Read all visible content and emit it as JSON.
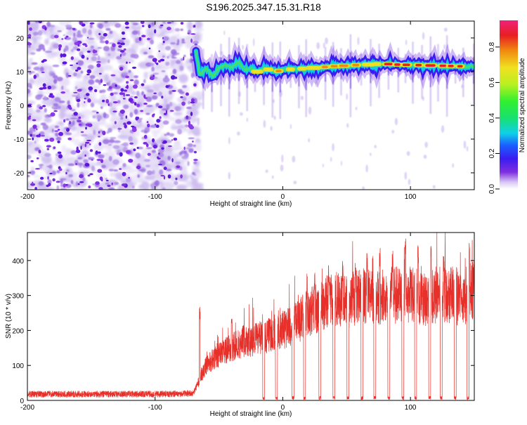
{
  "title": "S196.2025.347.15.31.R18",
  "chart_data": [
    {
      "type": "heatmap",
      "name": "spectrogram",
      "xlabel": "Height of straight line (km)",
      "ylabel": "Frequency (Hz)",
      "xlim": [
        -200,
        150
      ],
      "ylim": [
        -25,
        25
      ],
      "xticks": [
        -200,
        -100,
        0,
        100
      ],
      "xtick_labels": [
        "-200",
        "-100",
        "0",
        "100"
      ],
      "yticks": [
        -20,
        -10,
        0,
        10,
        20
      ],
      "ytick_labels": [
        "-20",
        "-10",
        "0",
        "10",
        "20"
      ],
      "noise_region_x": [
        -200,
        -68
      ],
      "transition_x": -68,
      "ridge": {
        "description": "carrier trace",
        "x": [
          -68,
          -65,
          -60,
          -55,
          -50,
          -45,
          -40,
          -35,
          -30,
          -25,
          -20,
          -15,
          -10,
          -5,
          0,
          10,
          20,
          30,
          40,
          50,
          60,
          70,
          80,
          90,
          100,
          110,
          120,
          130,
          140,
          150
        ],
        "freq": [
          16,
          9,
          11,
          8.5,
          11,
          12,
          11,
          13,
          10.5,
          11,
          10,
          11,
          10.5,
          10,
          10.5,
          10.8,
          11,
          11.3,
          11.6,
          11.8,
          12,
          12.2,
          12.3,
          12.1,
          12,
          11.9,
          11.8,
          11.7,
          11.6,
          11.5
        ],
        "amp": [
          0.3,
          0.4,
          0.35,
          0.4,
          0.5,
          0.45,
          0.5,
          0.55,
          0.5,
          0.55,
          0.6,
          0.6,
          0.65,
          0.7,
          0.75,
          0.8,
          0.8,
          0.85,
          0.85,
          0.9,
          0.9,
          0.95,
          0.95,
          0.9,
          0.9,
          0.9,
          0.85,
          0.85,
          0.85,
          0.8
        ]
      },
      "colorbar": {
        "label": "Normalized spectral amplitude",
        "range": [
          0.0,
          0.95
        ],
        "ticks": [
          0.0,
          0.2,
          0.4,
          0.6,
          0.8
        ],
        "tick_labels": [
          "0.0",
          "0.2",
          "0.4",
          "0.6",
          "0.8"
        ]
      }
    },
    {
      "type": "line",
      "name": "snr",
      "xlabel": "Height of straight line (km)",
      "ylabel": "SNR (10 * v/v)",
      "xlim": [
        -200,
        150
      ],
      "ylim": [
        0,
        480
      ],
      "xticks": [
        -200,
        -100,
        0,
        100
      ],
      "xtick_labels": [
        "-200",
        "-100",
        "0",
        "100"
      ],
      "yticks": [
        0,
        100,
        200,
        300,
        400
      ],
      "ytick_labels": [
        "0",
        "100",
        "200",
        "300",
        "400"
      ],
      "color": "#e8302a",
      "series": [
        {
          "name": "SNR",
          "x": [
            -200,
            -150,
            -100,
            -70,
            -65,
            -60,
            -50,
            -40,
            -30,
            -20,
            -10,
            0,
            10,
            20,
            30,
            40,
            50,
            60,
            70,
            80,
            90,
            100,
            110,
            120,
            130,
            140,
            150
          ],
          "values": [
            18,
            18,
            18,
            20,
            60,
            100,
            130,
            150,
            170,
            175,
            190,
            200,
            220,
            250,
            270,
            290,
            280,
            300,
            290,
            300,
            300,
            300,
            290,
            300,
            300,
            290,
            320
          ]
        }
      ],
      "spikes": [
        {
          "x": -65,
          "peak": 270
        },
        {
          "x": -40,
          "peak": 245
        },
        {
          "x": 25,
          "peak": 370
        },
        {
          "x": 36,
          "peak": 390
        },
        {
          "x": 47,
          "peak": 400
        },
        {
          "x": 57,
          "peak": 420
        },
        {
          "x": 66,
          "peak": 430
        },
        {
          "x": 76,
          "peak": 440
        },
        {
          "x": 86,
          "peak": 430
        },
        {
          "x": 96,
          "peak": 480
        },
        {
          "x": 106,
          "peak": 450
        },
        {
          "x": 116,
          "peak": 460
        },
        {
          "x": 126,
          "peak": 420
        },
        {
          "x": 136,
          "peak": 390
        },
        {
          "x": 146,
          "peak": 450
        }
      ],
      "dropouts_x": [
        -15,
        -5,
        8,
        17,
        29,
        40,
        51,
        62,
        72,
        83,
        94,
        104,
        115,
        124,
        135,
        145
      ]
    }
  ]
}
